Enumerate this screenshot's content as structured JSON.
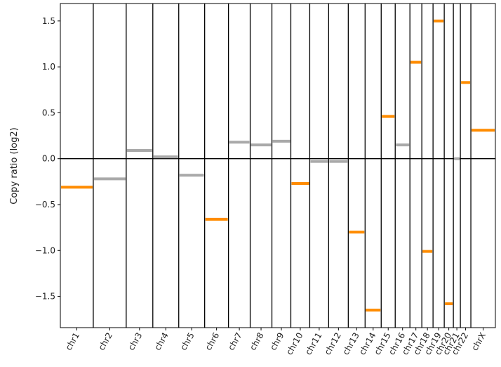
{
  "chart_data": {
    "type": "segments",
    "y_label": "Copy ratio (log2)",
    "categories": [
      "chr1",
      "chr2",
      "chr3",
      "chr4",
      "chr5",
      "chr6",
      "chr7",
      "chr8",
      "chr9",
      "chr10",
      "chr11",
      "chr12",
      "chr13",
      "chr14",
      "chr15",
      "chr16",
      "chr17",
      "chr18",
      "chr19",
      "chr20",
      "chr21",
      "chr22",
      "chrX"
    ],
    "sizes": [
      47,
      47,
      38,
      37,
      37,
      34,
      31,
      31,
      27,
      27,
      27,
      28,
      24,
      23,
      20,
      21,
      17,
      16,
      16,
      13,
      10,
      15,
      35
    ],
    "values": [
      -0.31,
      -0.22,
      0.09,
      0.02,
      -0.18,
      -0.66,
      0.18,
      0.15,
      0.19,
      -0.27,
      -0.03,
      -0.03,
      -0.8,
      -1.65,
      0.46,
      0.15,
      1.05,
      -1.01,
      1.5,
      -1.58,
      0.0,
      0.83,
      0.31
    ],
    "colors": [
      "#ff8c00",
      "#a9a9a9",
      "#a9a9a9",
      "#a9a9a9",
      "#a9a9a9",
      "#ff8c00",
      "#a9a9a9",
      "#a9a9a9",
      "#a9a9a9",
      "#ff8c00",
      "#a9a9a9",
      "#a9a9a9",
      "#ff8c00",
      "#ff8c00",
      "#ff8c00",
      "#a9a9a9",
      "#ff8c00",
      "#ff8c00",
      "#ff8c00",
      "#ff8c00",
      "#a9a9a9",
      "#ff8c00",
      "#ff8c00"
    ],
    "ylim": [
      -1.84,
      1.69
    ],
    "yticks": [
      {
        "value": -1.5,
        "label": "−1.5"
      },
      {
        "value": -1.0,
        "label": "−1.0"
      },
      {
        "value": -0.5,
        "label": "−0.5"
      },
      {
        "value": 0,
        "label": "0.0"
      },
      {
        "value": 0.5,
        "label": "0.5"
      },
      {
        "value": 1.0,
        "label": "1.0"
      },
      {
        "value": 1.5,
        "label": "1.5"
      }
    ]
  }
}
